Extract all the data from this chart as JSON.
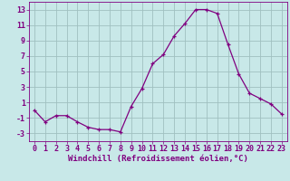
{
  "hours": [
    0,
    1,
    2,
    3,
    4,
    5,
    6,
    7,
    8,
    9,
    10,
    11,
    12,
    13,
    14,
    15,
    16,
    17,
    18,
    19,
    20,
    21,
    22,
    23
  ],
  "values": [
    0.0,
    -1.5,
    -0.7,
    -0.7,
    -1.5,
    -2.2,
    -2.5,
    -2.5,
    -2.8,
    0.5,
    2.8,
    6.0,
    7.2,
    9.6,
    11.2,
    13.0,
    13.0,
    12.5,
    8.5,
    4.7,
    2.2,
    1.5,
    0.8,
    -0.5
  ],
  "line_color": "#800080",
  "marker": "+",
  "bg_color": "#c8e8e8",
  "grid_color": "#a0c0c0",
  "xlabel": "Windchill (Refroidissement éolien,°C)",
  "xlabel_fontsize": 6.5,
  "tick_fontsize": 6.0,
  "ylim": [
    -4,
    14
  ],
  "yticks": [
    -3,
    -1,
    1,
    3,
    5,
    7,
    9,
    11,
    13
  ],
  "xlim": [
    -0.5,
    23.5
  ]
}
